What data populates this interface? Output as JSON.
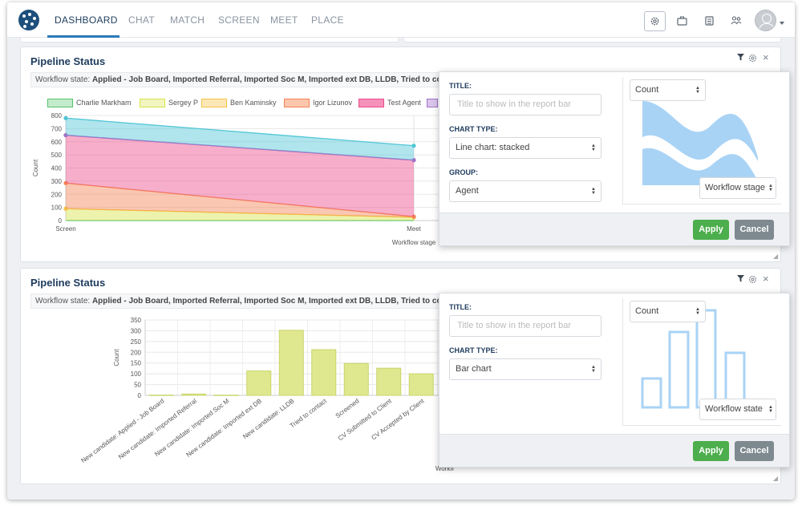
{
  "nav": {
    "items": [
      "DASHBOARD",
      "CHAT",
      "MATCH",
      "SCREEN",
      "MEET",
      "PLACE"
    ],
    "active": "DASHBOARD"
  },
  "top_icons": [
    "gear-icon",
    "briefcase-icon",
    "clipboard-icon",
    "users-icon",
    "avatar",
    "chevron-down-icon"
  ],
  "colors": {
    "accent": "#2a7ab8",
    "apply": "#4cae4c",
    "cancel": "#7e8a8f",
    "title": "#1d3b5c"
  },
  "panel1": {
    "title": "Pipeline Status",
    "workflow_label": "Workflow state:",
    "workflow_value": "Applied - Job Board, Imported Referral, Imported Soc M, Imported ext DB, LLDB, Tried to contac",
    "popover": {
      "title_label": "TITLE:",
      "title_placeholder": "Title to show in the report bar",
      "chart_type_label": "CHART TYPE:",
      "chart_type_value": "Line chart: stacked",
      "group_label": "GROUP:",
      "group_value": "Agent",
      "preview_y": "Count",
      "preview_x": "Workflow stage",
      "apply": "Apply",
      "cancel": "Cancel"
    }
  },
  "panel2": {
    "title": "Pipeline Status",
    "workflow_label": "Workflow state:",
    "workflow_value": "Applied - Job Board, Imported Referral, Imported Soc M, Imported ext DB, LLDB, Tried to contac",
    "popover": {
      "title_label": "TITLE:",
      "title_placeholder": "Title to show in the report bar",
      "chart_type_label": "CHART TYPE:",
      "chart_type_value": "Bar chart",
      "preview_y": "Count",
      "preview_x": "Workflow state",
      "apply": "Apply",
      "cancel": "Cancel"
    }
  },
  "chart_data": [
    {
      "type": "area",
      "stacked": true,
      "categories": [
        "Screen",
        "Meet"
      ],
      "xlabel": "Workflow stage",
      "ylabel": "Count",
      "ylim": [
        0,
        800
      ],
      "yticks": [
        0,
        100,
        200,
        300,
        400,
        500,
        600,
        700,
        800
      ],
      "series": [
        {
          "name": "Charlie Markham",
          "values": [
            0,
            0
          ],
          "color": "#57c26a"
        },
        {
          "name": "Sergey P",
          "values": [
            90,
            25
          ],
          "color": "#d7e34a"
        },
        {
          "name": "Ben Kaminsky",
          "values": [
            0,
            0
          ],
          "color": "#f7c14b"
        },
        {
          "name": "Igor Lizunov",
          "values": [
            195,
            5
          ],
          "color": "#f58255"
        },
        {
          "name": "Test Agent",
          "values": [
            365,
            430
          ],
          "color": "#ea4b8a"
        },
        {
          "name": "",
          "values": [
            0,
            0
          ],
          "color": "#a070c8"
        },
        {
          "name": "",
          "values": [
            130,
            110
          ],
          "color": "#4fc6d6"
        }
      ]
    },
    {
      "type": "bar",
      "categories": [
        "New candidate: Applied - Job Board",
        "New candidate: Imported Referral",
        "New candidate: Imported Soc M",
        "New candidate: Imported ext DB",
        "New candidate: LLDB",
        "Tried to contact",
        "Screened",
        "CV Submitted to Client",
        "CV Accepted by Client"
      ],
      "values": [
        1,
        6,
        1,
        113,
        302,
        212,
        148,
        126,
        100
      ],
      "ylabel": "Count",
      "xlabel": "Workflow state",
      "ylim": [
        0,
        350
      ],
      "yticks": [
        0,
        50,
        100,
        150,
        200,
        250,
        300,
        350
      ],
      "color": "#dfe88f"
    }
  ]
}
